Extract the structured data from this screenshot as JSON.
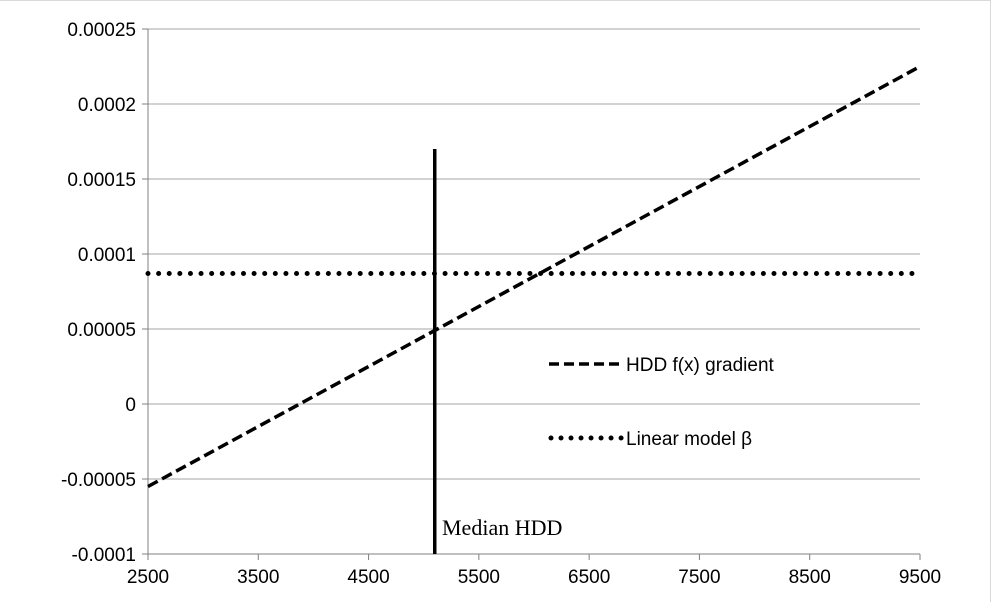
{
  "chart_data": {
    "type": "line",
    "x": [
      2500,
      9500
    ],
    "xlim": [
      2500,
      9500
    ],
    "ylim": [
      -0.0001,
      0.00025
    ],
    "xticks": [
      2500,
      3500,
      4500,
      5500,
      6500,
      7500,
      8500,
      9500
    ],
    "x_tick_labels": [
      "2500",
      "3500",
      "4500",
      "5500",
      "6500",
      "7500",
      "8500",
      "9500"
    ],
    "yticks": [
      -0.0001,
      -5e-05,
      0,
      5e-05,
      0.0001,
      0.00015,
      0.0002,
      0.00025
    ],
    "y_tick_labels": [
      "-0.0001",
      "-0.00005",
      "0",
      "0.00005",
      "0.0001",
      "0.00015",
      "0.0002",
      "0.00025"
    ],
    "grid": "horizontal",
    "legend_position": "right",
    "series": [
      {
        "name": "HDD f(x) gradient",
        "style": "dashed",
        "color": "#000000",
        "x": [
          2500,
          9500
        ],
        "y": [
          -5.5e-05,
          0.000225
        ]
      },
      {
        "name": "Linear model β",
        "style": "dotted",
        "color": "#000000",
        "x": [
          2500,
          9500
        ],
        "y": [
          8.7e-05,
          8.7e-05
        ]
      }
    ],
    "vline": {
      "x": 5100,
      "y_top": 0.00017,
      "label": "Median HDD",
      "color": "#000000"
    },
    "title": "",
    "xlabel": "",
    "ylabel": ""
  }
}
